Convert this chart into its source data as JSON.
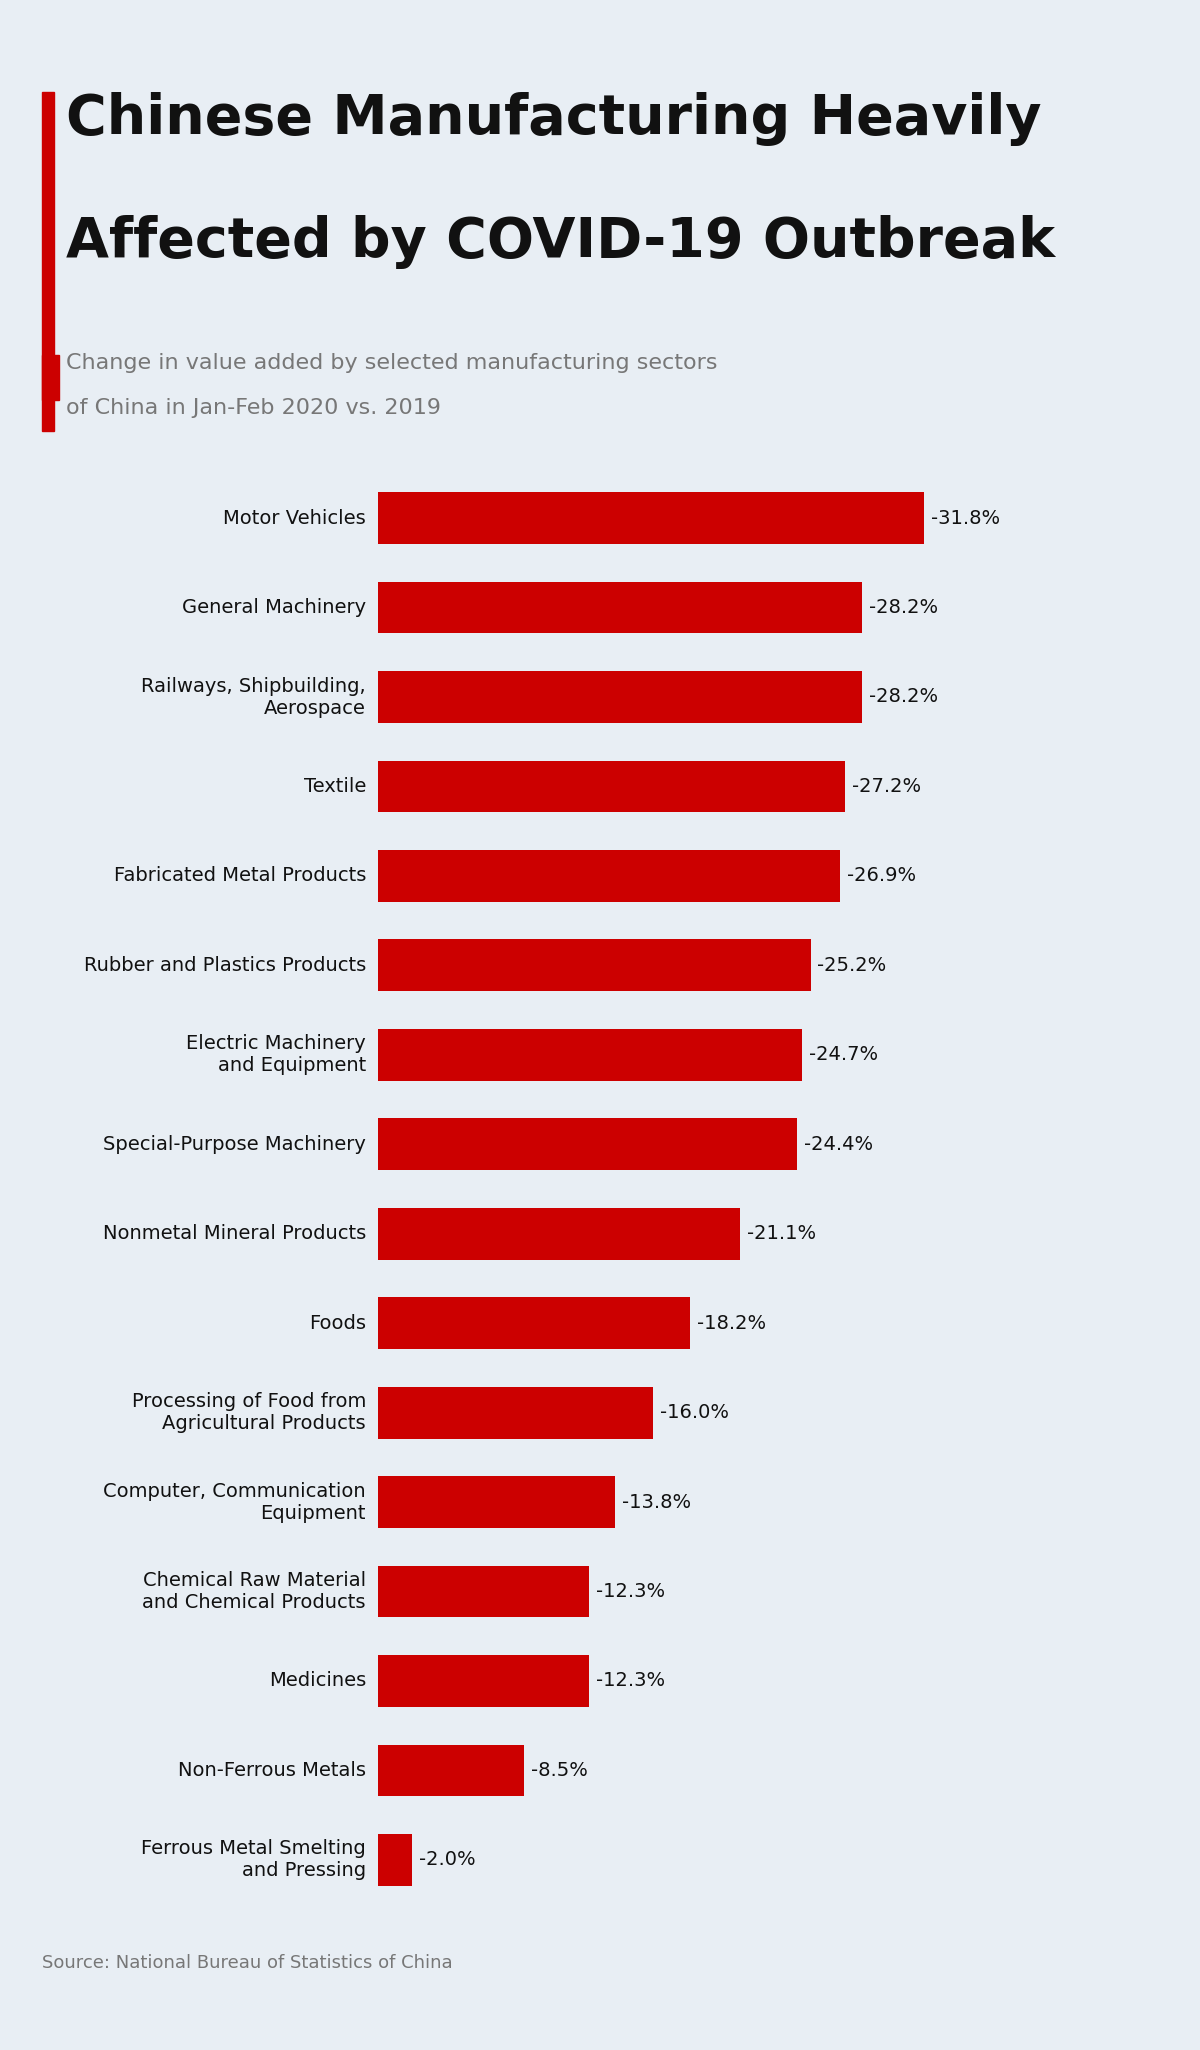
{
  "title_line1": "Chinese Manufacturing Heavily",
  "title_line2": "Affected by COVID-19 Outbreak",
  "subtitle_line1": "Change in value added by selected manufacturing sectors",
  "subtitle_line2": "of China in Jan-Feb 2020 vs. 2019",
  "source": "Source: National Bureau of Statistics of China",
  "categories": [
    "Motor Vehicles",
    "General Machinery",
    "Railways, Shipbuilding,\nAerospace",
    "Textile",
    "Fabricated Metal Products",
    "Rubber and Plastics Products",
    "Electric Machinery\nand Equipment",
    "Special-Purpose Machinery",
    "Nonmetal Mineral Products",
    "Foods",
    "Processing of Food from\nAgricultural Products",
    "Computer, Communication\nEquipment",
    "Chemical Raw Material\nand Chemical Products",
    "Medicines",
    "Non-Ferrous Metals",
    "Ferrous Metal Smelting\nand Pressing"
  ],
  "values": [
    -31.8,
    -28.2,
    -28.2,
    -27.2,
    -26.9,
    -25.2,
    -24.7,
    -24.4,
    -21.1,
    -18.2,
    -16.0,
    -13.8,
    -12.3,
    -12.3,
    -8.5,
    -2.0
  ],
  "bar_color": "#cc0000",
  "background_color": "#e8eef4",
  "title_color": "#111111",
  "subtitle_color": "#777777",
  "value_label_color": "#111111",
  "accent_color": "#cc0000",
  "bar_height": 0.58,
  "title_fontsize": 40,
  "subtitle_fontsize": 16,
  "label_fontsize": 14,
  "value_fontsize": 14
}
